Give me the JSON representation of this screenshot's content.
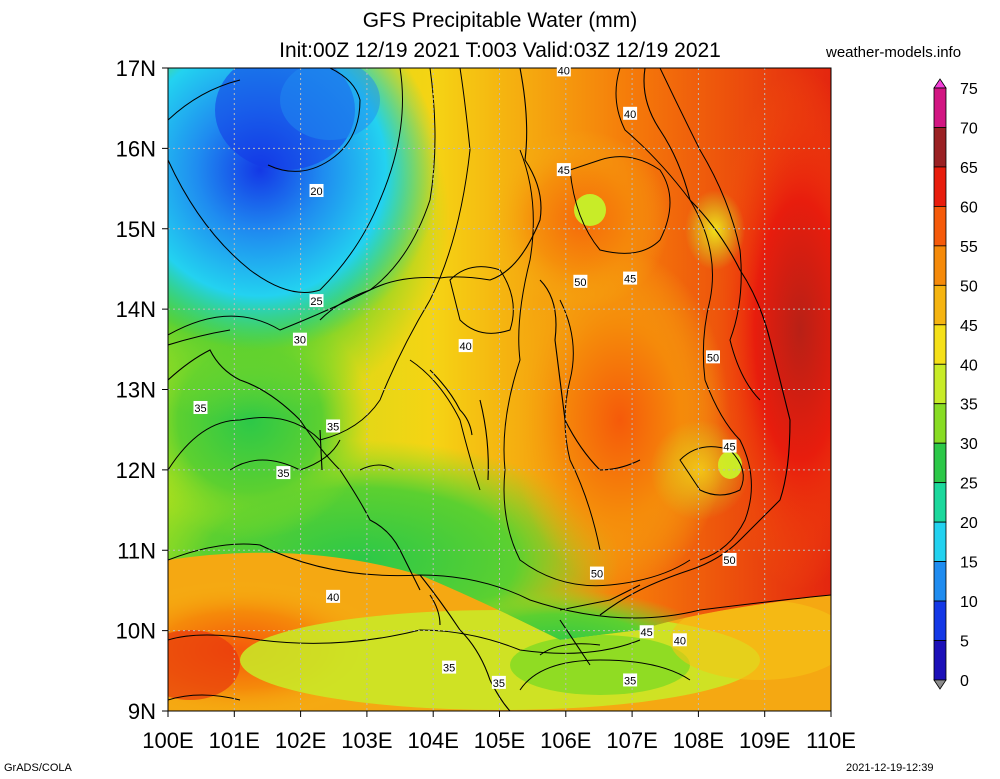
{
  "title_line1": "GFS Precipitable Water (mm)",
  "title_line2": "Init:00Z 12/19 2021 T:003 Valid:03Z 12/19 2021",
  "credit": "weather-models.info",
  "footer_left": "GrADS/COLA",
  "footer_right": "2021-12-19-12:39",
  "map": {
    "lon_range": [
      100,
      110
    ],
    "lat_range": [
      9,
      17
    ],
    "lon_ticks": [
      "100E",
      "101E",
      "102E",
      "103E",
      "104E",
      "105E",
      "106E",
      "107E",
      "108E",
      "109E",
      "110E"
    ],
    "lat_ticks": [
      "9N",
      "10N",
      "11N",
      "12N",
      "13N",
      "14N",
      "15N",
      "16N",
      "17N"
    ],
    "contour_labels": [
      {
        "text": "40",
        "lon": 105.97,
        "lat": 16.97
      },
      {
        "text": "40",
        "lon": 106.97,
        "lat": 16.43
      },
      {
        "text": "45",
        "lon": 105.97,
        "lat": 15.73
      },
      {
        "text": "20",
        "lon": 102.24,
        "lat": 15.47
      },
      {
        "text": "25",
        "lon": 102.24,
        "lat": 14.1
      },
      {
        "text": "30",
        "lon": 101.99,
        "lat": 13.62
      },
      {
        "text": "40",
        "lon": 104.49,
        "lat": 13.54
      },
      {
        "text": "50",
        "lon": 106.22,
        "lat": 14.34
      },
      {
        "text": "45",
        "lon": 106.97,
        "lat": 14.38
      },
      {
        "text": "50",
        "lon": 108.22,
        "lat": 13.4
      },
      {
        "text": "35",
        "lon": 100.49,
        "lat": 12.77
      },
      {
        "text": "35",
        "lon": 102.49,
        "lat": 12.54
      },
      {
        "text": "35",
        "lon": 101.74,
        "lat": 11.96
      },
      {
        "text": "45",
        "lon": 108.47,
        "lat": 12.29
      },
      {
        "text": "50",
        "lon": 108.47,
        "lat": 10.88
      },
      {
        "text": "50",
        "lon": 106.47,
        "lat": 10.71
      },
      {
        "text": "40",
        "lon": 102.49,
        "lat": 10.42
      },
      {
        "text": "45",
        "lon": 107.22,
        "lat": 9.98
      },
      {
        "text": "40",
        "lon": 107.72,
        "lat": 9.88
      },
      {
        "text": "35",
        "lon": 104.24,
        "lat": 9.54
      },
      {
        "text": "35",
        "lon": 104.99,
        "lat": 9.35
      },
      {
        "text": "35",
        "lon": 106.97,
        "lat": 9.38
      }
    ]
  },
  "colorbar": {
    "labels": [
      "75",
      "70",
      "65",
      "60",
      "55",
      "50",
      "45",
      "40",
      "35",
      "30",
      "25",
      "20",
      "15",
      "10",
      "5",
      "0"
    ],
    "colors": [
      "#f53fd9",
      "#d21682",
      "#9a2124",
      "#e81d0d",
      "#f55a0a",
      "#f58a0a",
      "#f5b411",
      "#f5e019",
      "#c8ec28",
      "#88dc24",
      "#2cc848",
      "#1cd89c",
      "#23d2f0",
      "#1f8cf0",
      "#1438e6",
      "#1c10b8",
      "#3a0c8c",
      "#6a4c8c",
      "#8c8c8c"
    ]
  }
}
